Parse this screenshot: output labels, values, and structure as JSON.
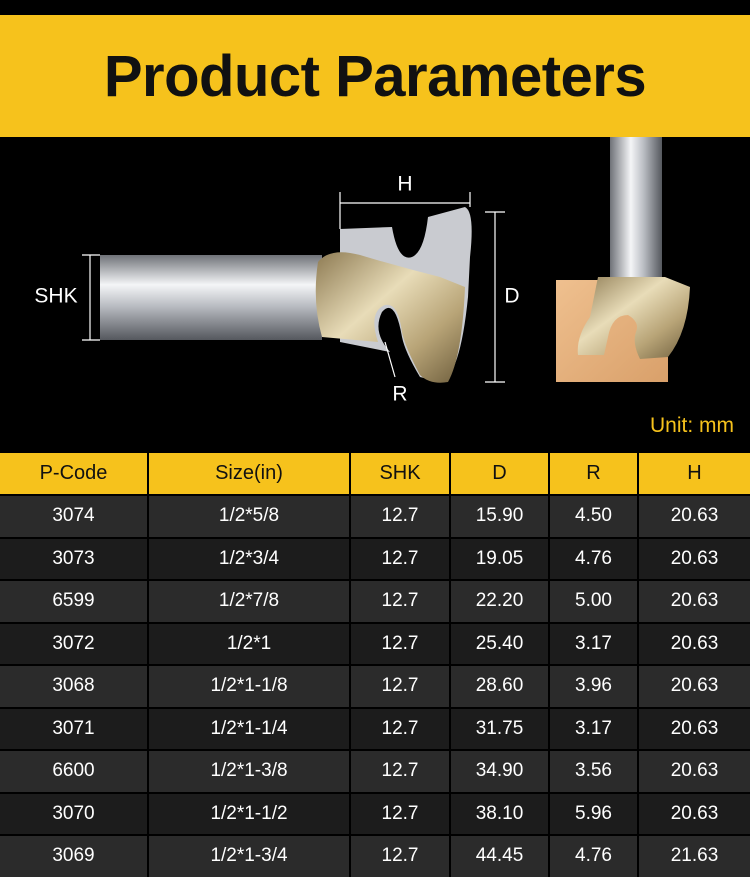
{
  "header": {
    "title": "Product Parameters"
  },
  "diagram": {
    "labels": {
      "h": "H",
      "shk": "SHK",
      "d": "D",
      "r": "R"
    },
    "unit": "Unit: mm"
  },
  "table": {
    "columns": [
      "P-Code",
      "Size(in)",
      "SHK",
      "D",
      "R",
      "H"
    ],
    "rows": [
      [
        "3074",
        "1/2*5/8",
        "12.7",
        "15.90",
        "4.50",
        "20.63"
      ],
      [
        "3073",
        "1/2*3/4",
        "12.7",
        "19.05",
        "4.76",
        "20.63"
      ],
      [
        "6599",
        "1/2*7/8",
        "12.7",
        "22.20",
        "5.00",
        "20.63"
      ],
      [
        "3072",
        "1/2*1",
        "12.7",
        "25.40",
        "3.17",
        "20.63"
      ],
      [
        "3068",
        "1/2*1-1/8",
        "12.7",
        "28.60",
        "3.96",
        "20.63"
      ],
      [
        "3071",
        "1/2*1-1/4",
        "12.7",
        "31.75",
        "3.17",
        "20.63"
      ],
      [
        "6600",
        "1/2*1-3/8",
        "12.7",
        "34.90",
        "3.56",
        "20.63"
      ],
      [
        "3070",
        "1/2*1-1/2",
        "12.7",
        "38.10",
        "5.96",
        "20.63"
      ],
      [
        "3069",
        "1/2*1-3/4",
        "12.7",
        "44.45",
        "4.76",
        "21.63"
      ]
    ]
  }
}
